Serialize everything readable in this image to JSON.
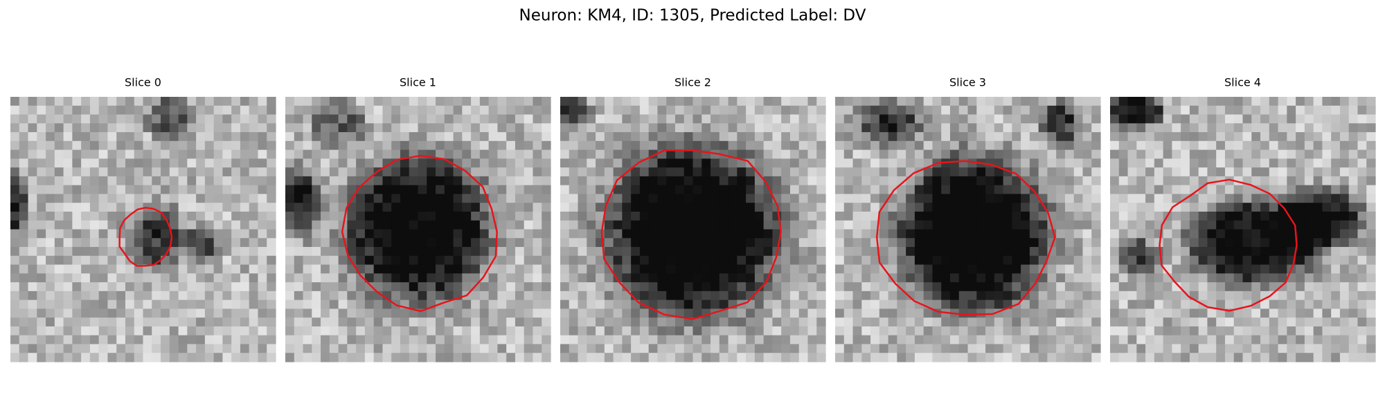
{
  "title": "Neuron: KM4, ID: 1305, Predicted Label: DV",
  "panels": [
    {
      "title": "Slice 0"
    },
    {
      "title": "Slice 1"
    },
    {
      "title": "Slice 2"
    },
    {
      "title": "Slice 3"
    },
    {
      "title": "Slice 4"
    }
  ]
}
